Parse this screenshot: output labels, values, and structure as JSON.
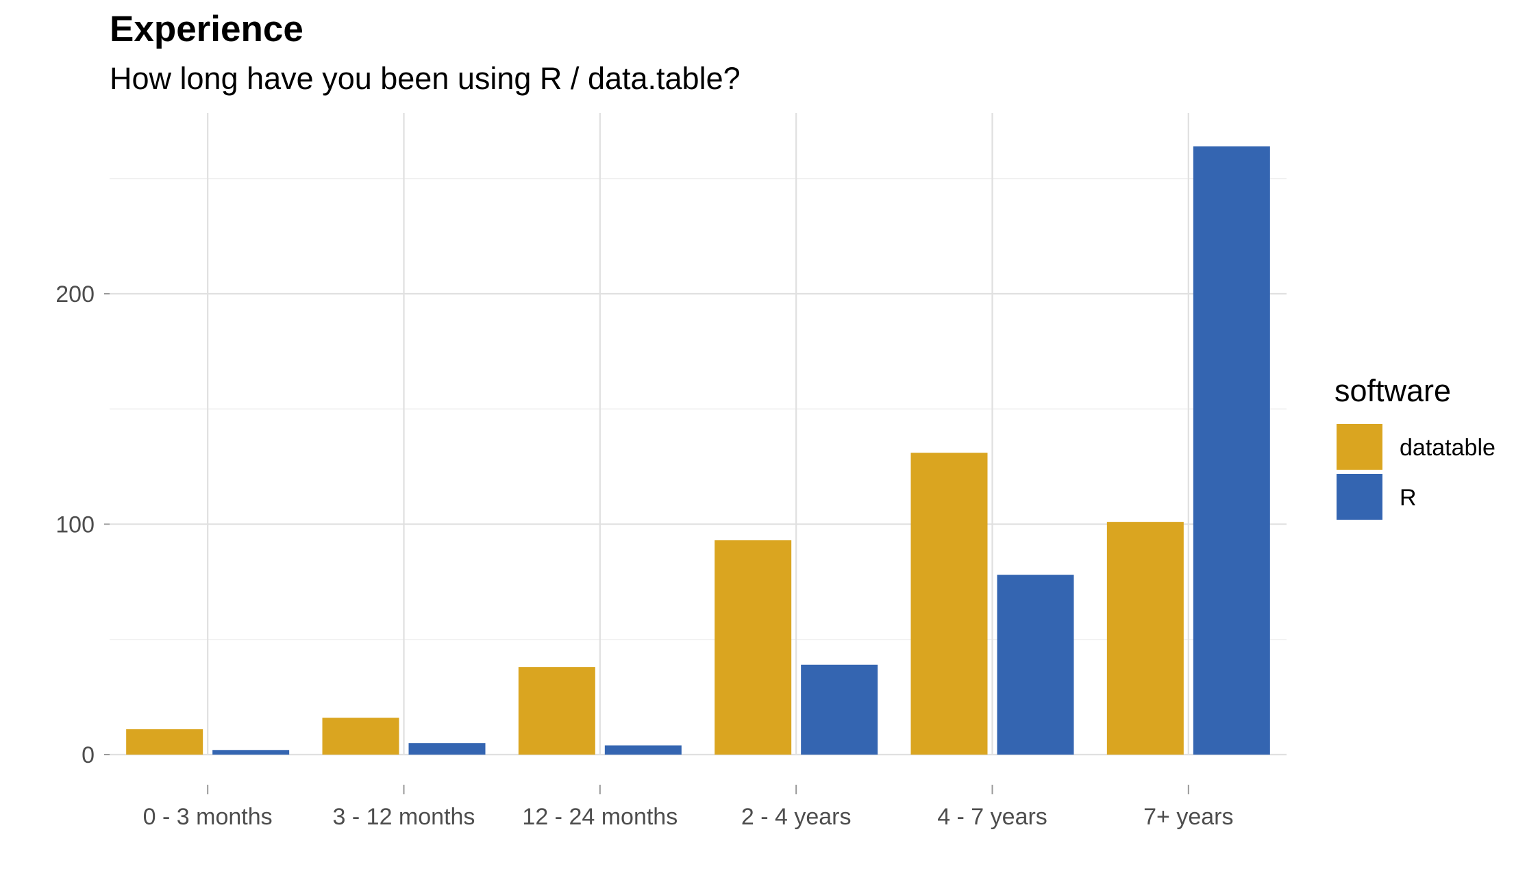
{
  "chart_data": {
    "type": "bar",
    "title": "Experience",
    "subtitle": "How long have you been using R / data.table?",
    "xlabel": "",
    "ylabel": "",
    "categories": [
      "0 - 3 months",
      "3 - 12 months",
      "12 - 24 months",
      "2 - 4 years",
      "4 - 7 years",
      "7+ years"
    ],
    "series": [
      {
        "name": "datatable",
        "color": "#DAA520",
        "values": [
          11,
          16,
          38,
          93,
          131,
          101
        ]
      },
      {
        "name": "R",
        "color": "#3465B1",
        "values": [
          2,
          5,
          4,
          39,
          78,
          264
        ]
      }
    ],
    "ylim": [
      0,
      276
    ],
    "yticks": [
      0,
      100,
      200
    ],
    "grid": true,
    "legend": {
      "title": "software",
      "placement": "right"
    }
  }
}
